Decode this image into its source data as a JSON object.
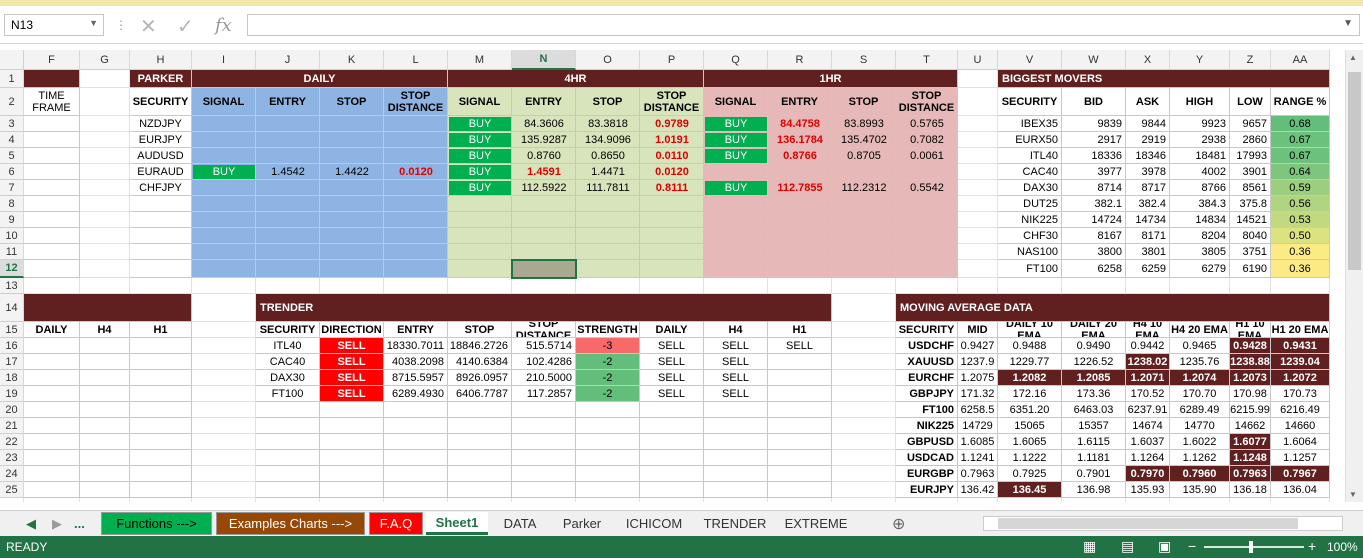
{
  "formula_bar": {
    "name_box": "N13",
    "fx_label": "fx",
    "formula": ""
  },
  "columns": [
    "F",
    "G",
    "H",
    "I",
    "J",
    "K",
    "L",
    "M",
    "N",
    "O",
    "P",
    "Q",
    "R",
    "S",
    "T",
    "U",
    "V",
    "W",
    "X",
    "Y",
    "Z",
    "AA"
  ],
  "selected_column": "N",
  "rows": [
    "1",
    "2",
    "3",
    "4",
    "5",
    "6",
    "7",
    "8",
    "9",
    "10",
    "11",
    "12",
    "13",
    "14",
    "15",
    "16",
    "17",
    "18",
    "19",
    "20",
    "21",
    "22",
    "23",
    "24",
    "25"
  ],
  "selected_row": "12",
  "top": {
    "parker_title": "PARKER",
    "daily_title": "DAILY",
    "h4_title": "4HR",
    "h1_title": "1HR",
    "time_frame": "TIME FRAME",
    "headers": {
      "security": "SECURITY",
      "signal": "SIGNAL",
      "entry": "ENTRY",
      "stop": "STOP",
      "stop_distance": "STOP DISTANCE"
    },
    "rows": [
      {
        "sec": "NZDJPY",
        "d": [
          "",
          "",
          "",
          ""
        ],
        "h4": [
          "BUY",
          "84.3606",
          "83.3818",
          "0.9789"
        ],
        "h1": [
          "BUY",
          "84.4758",
          "83.8993",
          "0.5765"
        ]
      },
      {
        "sec": "EURJPY",
        "d": [
          "",
          "",
          "",
          ""
        ],
        "h4": [
          "BUY",
          "135.9287",
          "134.9096",
          "1.0191"
        ],
        "h1": [
          "BUY",
          "136.1784",
          "135.4702",
          "0.7082"
        ]
      },
      {
        "sec": "AUDUSD",
        "d": [
          "",
          "",
          "",
          ""
        ],
        "h4": [
          "BUY",
          "0.8760",
          "0.8650",
          "0.0110"
        ],
        "h1": [
          "BUY",
          "0.8766",
          "0.8705",
          "0.0061"
        ]
      },
      {
        "sec": "EURAUD",
        "d": [
          "BUY",
          "1.4542",
          "1.4422",
          "0.0120"
        ],
        "h4": [
          "BUY",
          "1.4591",
          "1.4471",
          "0.0120"
        ],
        "h1": [
          "",
          "",
          "",
          ""
        ]
      },
      {
        "sec": "CHFJPY",
        "d": [
          "",
          "",
          "",
          ""
        ],
        "h4": [
          "BUY",
          "112.5922",
          "111.7811",
          "0.8111"
        ],
        "h1": [
          "BUY",
          "112.7855",
          "112.2312",
          "0.5542"
        ]
      }
    ]
  },
  "movers": {
    "title": "BIGGEST MOVERS",
    "headers": [
      "SECURITY",
      "BID",
      "ASK",
      "HIGH",
      "LOW",
      "RANGE %"
    ],
    "rows": [
      [
        "IBEX35",
        "9839",
        "9844",
        "9923",
        "9657",
        "0.68"
      ],
      [
        "EURX50",
        "2917",
        "2919",
        "2938",
        "2860",
        "0.67"
      ],
      [
        "ITL40",
        "18336",
        "18346",
        "18481",
        "17993",
        "0.67"
      ],
      [
        "CAC40",
        "3977",
        "3978",
        "4002",
        "3901",
        "0.64"
      ],
      [
        "DAX30",
        "8714",
        "8717",
        "8766",
        "8561",
        "0.59"
      ],
      [
        "DUT25",
        "382.1",
        "382.4",
        "384.3",
        "375.8",
        "0.56"
      ],
      [
        "NIK225",
        "14724",
        "14734",
        "14834",
        "14521",
        "0.53"
      ],
      [
        "CHF30",
        "8167",
        "8171",
        "8204",
        "8040",
        "0.50"
      ],
      [
        "NAS100",
        "3800",
        "3801",
        "3805",
        "3751",
        "0.36"
      ],
      [
        "FT100",
        "6258",
        "6259",
        "6279",
        "6190",
        "0.36"
      ]
    ]
  },
  "bottom_left": {
    "headers": [
      "DAILY",
      "H4",
      "H1"
    ]
  },
  "trender": {
    "title": "TRENDER",
    "headers": [
      "SECURITY",
      "DIRECTION",
      "ENTRY",
      "STOP",
      "STOP DISTANCE",
      "STRENGTH",
      "DAILY",
      "H4",
      "H1"
    ],
    "rows": [
      [
        "ITL40",
        "SELL",
        "18330.7011",
        "18846.2726",
        "515.5714",
        "-3",
        "SELL",
        "SELL",
        "SELL"
      ],
      [
        "CAC40",
        "SELL",
        "4038.2098",
        "4140.6384",
        "102.4286",
        "-2",
        "SELL",
        "SELL",
        ""
      ],
      [
        "DAX30",
        "SELL",
        "8715.5957",
        "8926.0957",
        "210.5000",
        "-2",
        "SELL",
        "SELL",
        ""
      ],
      [
        "FT100",
        "SELL",
        "6289.4930",
        "6406.7787",
        "117.2857",
        "-2",
        "SELL",
        "SELL",
        ""
      ]
    ]
  },
  "ma": {
    "title": "MOVING AVERAGE DATA",
    "headers": [
      "SECURITY",
      "MID",
      "DAILY 10 EMA",
      "DAILY 20 EMA",
      "H4 10 EMA",
      "H4 20 EMA",
      "H1 10 EMA",
      "H1 20 EMA"
    ],
    "rows": [
      [
        "USDCHF",
        "0.9427",
        "0.9488",
        "0.9490",
        "0.9442",
        "0.9465",
        "0.9428",
        "0.9431"
      ],
      [
        "XAUUSD",
        "1237.9",
        "1229.77",
        "1226.52",
        "1238.02",
        "1235.76",
        "1238.88",
        "1239.04"
      ],
      [
        "EURCHF",
        "1.2075",
        "1.2082",
        "1.2085",
        "1.2071",
        "1.2074",
        "1.2073",
        "1.2072"
      ],
      [
        "GBPJPY",
        "171.32",
        "172.16",
        "173.36",
        "170.52",
        "170.70",
        "170.98",
        "170.73"
      ],
      [
        "FT100",
        "6258.5",
        "6351.20",
        "6463.03",
        "6237.91",
        "6289.49",
        "6215.99",
        "6216.49"
      ],
      [
        "NIK225",
        "14729",
        "15065",
        "15357",
        "14674",
        "14770",
        "14662",
        "14660"
      ],
      [
        "GBPUSD",
        "1.6085",
        "1.6065",
        "1.6115",
        "1.6037",
        "1.6022",
        "1.6077",
        "1.6064"
      ],
      [
        "USDCAD",
        "1.1241",
        "1.1222",
        "1.1181",
        "1.1264",
        "1.1262",
        "1.1248",
        "1.1257"
      ],
      [
        "EURGBP",
        "0.7963",
        "0.7925",
        "0.7901",
        "0.7970",
        "0.7960",
        "0.7963",
        "0.7967"
      ],
      [
        "EURJPY",
        "136.42",
        "136.45",
        "136.98",
        "135.93",
        "135.90",
        "136.18",
        "136.04"
      ]
    ],
    "highlight": [
      [
        0,
        6
      ],
      [
        0,
        7
      ],
      [
        1,
        4
      ],
      [
        1,
        6
      ],
      [
        1,
        7
      ],
      [
        2,
        2
      ],
      [
        2,
        3
      ],
      [
        2,
        4
      ],
      [
        2,
        5
      ],
      [
        2,
        6
      ],
      [
        2,
        7
      ],
      [
        6,
        6
      ],
      [
        7,
        6
      ],
      [
        8,
        4
      ],
      [
        8,
        5
      ],
      [
        8,
        6
      ],
      [
        8,
        7
      ],
      [
        9,
        2
      ]
    ]
  },
  "tabs": [
    "...",
    "Functions --->",
    "Examples Charts --->",
    "F.A.Q",
    "Sheet1",
    "DATA",
    "Parker",
    "ICHICOM",
    "TRENDER",
    "EXTREME"
  ],
  "status": {
    "ready": "READY",
    "zoom": "100%"
  },
  "colors": {
    "maroon": "#612020",
    "blue": "#8db4e2",
    "green_pale": "#d8e4bc",
    "pink": "#e6b8b7",
    "buy_green": "#00b050",
    "sell_red": "#ff0000",
    "red_text": "#e00000",
    "excel_green": "#217346"
  }
}
